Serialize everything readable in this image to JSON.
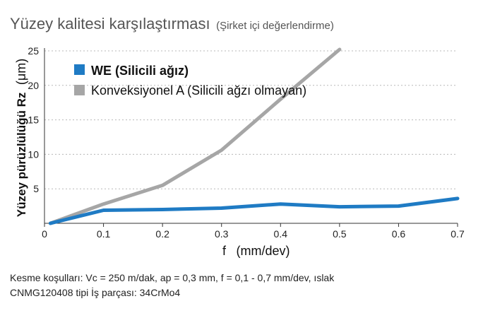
{
  "chart_data": {
    "type": "line",
    "title": "Yüzey kalitesi karşılaştırması",
    "subtitle": "(Şirket içi değerlendirme)",
    "xlabel_symbol": "f",
    "xlabel_unit": "(mm/dev)",
    "ylabel": "Yüzey pürüzlülüğü Rz",
    "ylabel_unit": "(μm)",
    "xlim": [
      0,
      0.7
    ],
    "ylim": [
      0,
      25
    ],
    "x_ticks": [
      "0",
      "0.1",
      "0.2",
      "0.3",
      "0.4",
      "0.5",
      "0.6",
      "0.7"
    ],
    "x_tick_values": [
      0,
      0.1,
      0.2,
      0.3,
      0.4,
      0.5,
      0.6,
      0.7
    ],
    "y_ticks": [
      "5",
      "10",
      "15",
      "20",
      "25"
    ],
    "y_tick_values": [
      5,
      10,
      15,
      20,
      25
    ],
    "grid": "horizontal dotted",
    "legend_position": "top-left",
    "series": [
      {
        "name": "WE (Silicili ağız)",
        "color": "#1f7bc4",
        "x": [
          0.01,
          0.1,
          0.2,
          0.3,
          0.4,
          0.5,
          0.6,
          0.7
        ],
        "y": [
          0.0,
          1.9,
          2.0,
          2.2,
          2.8,
          2.4,
          2.5,
          3.6
        ]
      },
      {
        "name": "Konveksiyonel A (Silicili ağzı olmayan)",
        "color": "#a6a6a6",
        "x": [
          0.01,
          0.1,
          0.2,
          0.3,
          0.4,
          0.5
        ],
        "y": [
          0.0,
          2.8,
          5.5,
          10.6,
          18.0,
          25.2
        ]
      }
    ]
  },
  "footnote": {
    "line1": "Kesme koşulları: Vc = 250 m/dak, ap = 0,3 mm, f = 0,1 - 0,7 mm/dev, ıslak",
    "line2": "CNMG120408 tipi İş parçası: 34CrMo4"
  }
}
